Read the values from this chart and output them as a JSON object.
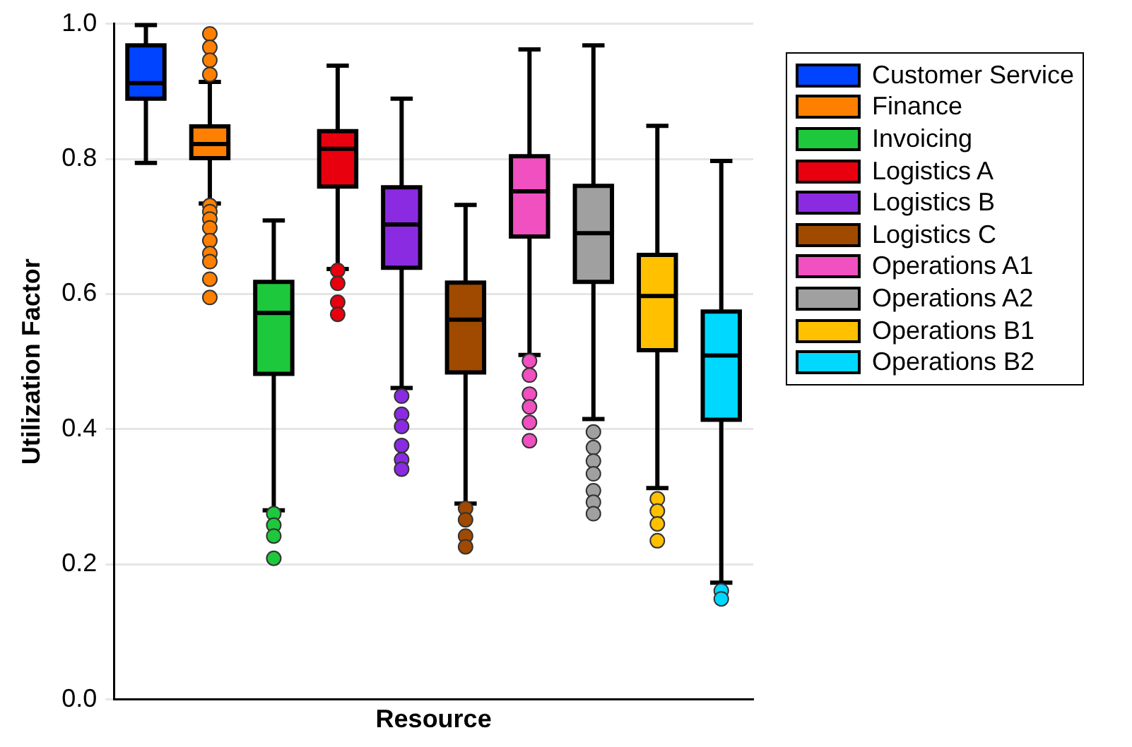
{
  "chart_data": {
    "type": "box",
    "xlabel": "Resource",
    "ylabel": "Utilization Factor",
    "categories": [
      null,
      null,
      null,
      null,
      null,
      null,
      null,
      null,
      null,
      null
    ],
    "ylim": [
      0,
      1
    ],
    "yticks": [
      {
        "value": 0,
        "label": "0.0"
      },
      {
        "value": 0.2,
        "label": "0.2"
      },
      {
        "value": 0.4,
        "label": "0.4"
      },
      {
        "value": 0.6,
        "label": "0.6"
      },
      {
        "value": 0.8,
        "label": "0.8"
      },
      {
        "value": 1,
        "label": "1.0"
      }
    ],
    "grid": "y",
    "legend": "right",
    "marker": "circle",
    "series": [
      {
        "name": "Customer Service",
        "color": "#0044ff",
        "boxes": [
          {
            "low": 0.794,
            "q1": 0.889,
            "median": 0.912,
            "q3": 0.968,
            "high": 0.998
          },
          null,
          null,
          null,
          null,
          null,
          null,
          null,
          null,
          null
        ]
      },
      {
        "name": "Finance",
        "color": "#ff8000",
        "boxes": [
          null,
          {
            "low": 0.734,
            "q1": 0.801,
            "median": 0.822,
            "q3": 0.848,
            "high": 0.914,
            "outliers": [
              0.985,
              0.965,
              0.946,
              0.925,
              0.731,
              0.722,
              0.711,
              0.698,
              0.679,
              0.66,
              0.648,
              0.622,
              0.595
            ]
          },
          null,
          null,
          null,
          null,
          null,
          null,
          null,
          null
        ]
      },
      {
        "name": "Invoicing",
        "color": "#1ec83c",
        "boxes": [
          null,
          null,
          {
            "low": 0.28,
            "q1": 0.482,
            "median": 0.572,
            "q3": 0.618,
            "high": 0.709,
            "outliers": [
              0.275,
              0.258,
              0.242,
              0.209
            ]
          },
          null,
          null,
          null,
          null,
          null,
          null,
          null
        ]
      },
      {
        "name": "Logistics A",
        "color": "#e8000e",
        "boxes": [
          null,
          null,
          null,
          {
            "low": 0.637,
            "q1": 0.759,
            "median": 0.815,
            "q3": 0.841,
            "high": 0.938,
            "outliers": [
              0.635,
              0.616,
              0.588,
              0.57
            ]
          },
          null,
          null,
          null,
          null,
          null,
          null
        ]
      },
      {
        "name": "Logistics B",
        "color": "#8a2be2",
        "boxes": [
          null,
          null,
          null,
          null,
          {
            "low": 0.461,
            "q1": 0.639,
            "median": 0.703,
            "q3": 0.758,
            "high": 0.889,
            "outliers": [
              0.449,
              0.422,
              0.404,
              0.376,
              0.355,
              0.341
            ]
          },
          null,
          null,
          null,
          null,
          null
        ]
      },
      {
        "name": "Logistics C",
        "color": "#a04a00",
        "boxes": [
          null,
          null,
          null,
          null,
          null,
          {
            "low": 0.29,
            "q1": 0.484,
            "median": 0.562,
            "q3": 0.617,
            "high": 0.732,
            "outliers": [
              0.283,
              0.266,
              0.242,
              0.226
            ]
          },
          null,
          null,
          null,
          null
        ]
      },
      {
        "name": "Operations A1",
        "color": "#f050c0",
        "boxes": [
          null,
          null,
          null,
          null,
          null,
          null,
          {
            "low": 0.51,
            "q1": 0.685,
            "median": 0.752,
            "q3": 0.804,
            "high": 0.962,
            "outliers": [
              0.501,
              0.48,
              0.452,
              0.433,
              0.41,
              0.383
            ]
          },
          null,
          null,
          null
        ]
      },
      {
        "name": "Operations A2",
        "color": "#a0a0a0",
        "boxes": [
          null,
          null,
          null,
          null,
          null,
          null,
          null,
          {
            "low": 0.415,
            "q1": 0.618,
            "median": 0.69,
            "q3": 0.76,
            "high": 0.968,
            "outliers": [
              0.396,
              0.373,
              0.353,
              0.334,
              0.309,
              0.292,
              0.275
            ]
          },
          null,
          null
        ]
      },
      {
        "name": "Operations B1",
        "color": "#ffc000",
        "boxes": [
          null,
          null,
          null,
          null,
          null,
          null,
          null,
          null,
          {
            "low": 0.313,
            "q1": 0.517,
            "median": 0.597,
            "q3": 0.658,
            "high": 0.849,
            "outliers": [
              0.297,
              0.279,
              0.26,
              0.235
            ]
          },
          null
        ]
      },
      {
        "name": "Operations B2",
        "color": "#00d8ff",
        "boxes": [
          null,
          null,
          null,
          null,
          null,
          null,
          null,
          null,
          null,
          {
            "low": 0.173,
            "q1": 0.414,
            "median": 0.509,
            "q3": 0.574,
            "high": 0.797,
            "outliers": [
              0.161,
              0.149
            ]
          }
        ]
      }
    ]
  }
}
